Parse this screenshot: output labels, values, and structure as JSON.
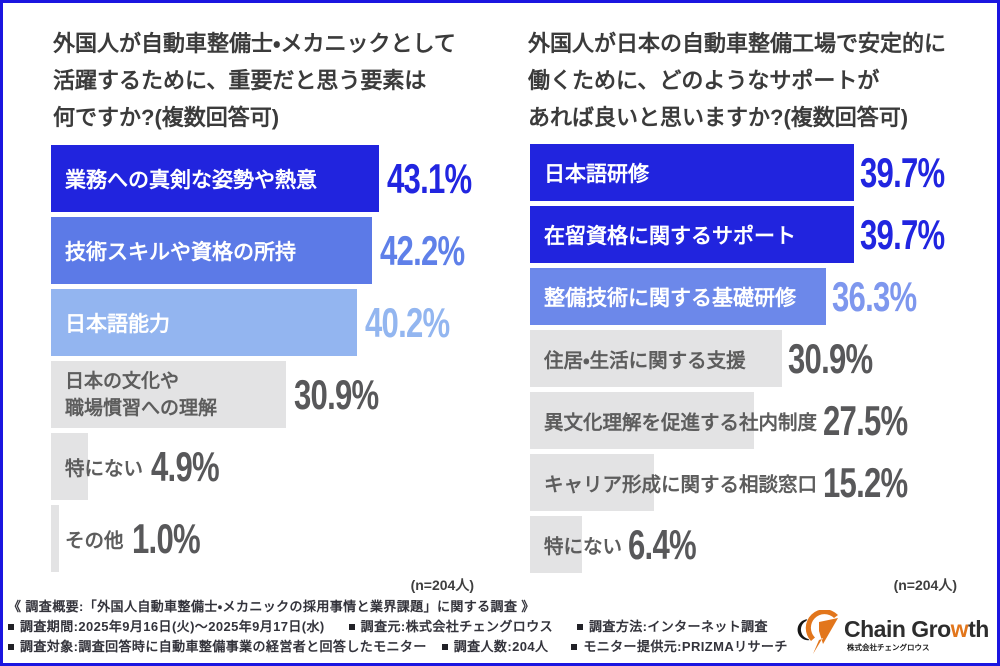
{
  "page": {
    "background": "#ffffff",
    "border_color": "#1b16e0"
  },
  "palette": {
    "blue_dark": "#2124de",
    "blue_mid": "#5c7ae7",
    "blue_mid_right": "#6c88ea",
    "blue_light": "#93b5f0",
    "gray_bar": "#e3e3e4",
    "value_blue_dark": "#2125e0",
    "value_blue_mid": "#5f80e9",
    "value_blue_mid_right": "#7e97ee",
    "value_blue_light": "#93b6f0",
    "value_gray": "#58585a",
    "label_on_blue": "#ffffff",
    "label_on_gray": "#5d5d5d",
    "title_color": "#3b3b3b",
    "footer_color": "#33333b",
    "logo_orange": "#e2761c",
    "logo_black": "#161616"
  },
  "chart_data": [
    {
      "type": "bar",
      "orientation": "horizontal",
      "title": "外国人が自動車整備士・メカニックとして活躍するために、重要だと思う要素は何ですか?(複数回答可)",
      "title_lines": [
        "外国人が自動車整備士・メカニックとして",
        "活躍するために、重要だと思う要素は",
        "何ですか?(複数回答可)"
      ],
      "n_label": "(n=204人)",
      "unit": "%",
      "categories": [
        "業務への真剣な姿勢や熱意",
        "技術スキルや資格の所持",
        "日本語能力",
        "日本の文化や職場慣習への理解",
        "特にない",
        "その他"
      ],
      "values": [
        43.1,
        42.2,
        40.2,
        30.9,
        4.9,
        1.0
      ],
      "rows": [
        {
          "label": "業務への真剣な姿勢や熱意",
          "value": 43.1,
          "display": "43.1%",
          "style": "blue1"
        },
        {
          "label": "技術スキルや資格の所持",
          "value": 42.2,
          "display": "42.2%",
          "style": "blue2"
        },
        {
          "label": "日本語能力",
          "value": 40.2,
          "display": "40.2%",
          "style": "blue3"
        },
        {
          "label": "日本の文化や\n職場慣習への理解",
          "value": 30.9,
          "display": "30.9%",
          "style": "gray"
        },
        {
          "label": "特にない",
          "value": 4.9,
          "display": "4.9%",
          "style": "gray"
        },
        {
          "label": "その他",
          "value": 1.0,
          "display": "1.0%",
          "style": "gray"
        }
      ]
    },
    {
      "type": "bar",
      "orientation": "horizontal",
      "title": "外国人が日本の自動車整備工場で安定的に働くために、どのようなサポートがあれば良いと思いますか?(複数回答可)",
      "title_lines": [
        "外国人が日本の自動車整備工場で安定的に",
        "働くために、どのようなサポートが",
        "あれば良いと思いますか?(複数回答可)"
      ],
      "n_label": "(n=204人)",
      "unit": "%",
      "categories": [
        "日本語研修",
        "在留資格に関するサポート",
        "整備技術に関する基礎研修",
        "住居・生活に関する支援",
        "異文化理解を促進する社内制度",
        "キャリア形成に関する相談窓口",
        "特にない"
      ],
      "values": [
        39.7,
        39.7,
        36.3,
        30.9,
        27.5,
        15.2,
        6.4
      ],
      "rows": [
        {
          "label": "日本語研修",
          "value": 39.7,
          "display": "39.7%",
          "style": "blue1"
        },
        {
          "label": "在留資格に関するサポート",
          "value": 39.7,
          "display": "39.7%",
          "style": "blue1"
        },
        {
          "label": "整備技術に関する基礎研修",
          "value": 36.3,
          "display": "36.3%",
          "style": "blue2r"
        },
        {
          "label": "住居・生活に関する支援",
          "value": 30.9,
          "display": "30.9%",
          "style": "gray"
        },
        {
          "label": "異文化理解を促進する社内制度",
          "value": 27.5,
          "display": "27.5%",
          "style": "gray"
        },
        {
          "label": "キャリア形成に関する相談窓口",
          "value": 15.2,
          "display": "15.2%",
          "style": "gray"
        },
        {
          "label": "特にない",
          "value": 6.4,
          "display": "6.4%",
          "style": "gray"
        }
      ]
    }
  ],
  "footer": {
    "line1": "《 調査概要:「外国人自動車整備士・メカニックの採用事情と業界課題」に関する調査 》",
    "line2_items": [
      "調査期間:2025年9月16日(火)〜2025年9月17日(水)",
      "調査元:株式会社チェングロウス",
      "調査方法:インターネット調査"
    ],
    "line3_items": [
      "調査対象:調査回答時に自動車整備事業の経営者と回答したモニター",
      "調査人数:204人",
      "モニター提供元:PRIZMAリサーチ"
    ]
  },
  "logo": {
    "company": "Chain Growth",
    "text_before": "Chain Gro",
    "text_accent": "w",
    "text_after": "th",
    "subtitle": "株式会社チェングロウス"
  }
}
